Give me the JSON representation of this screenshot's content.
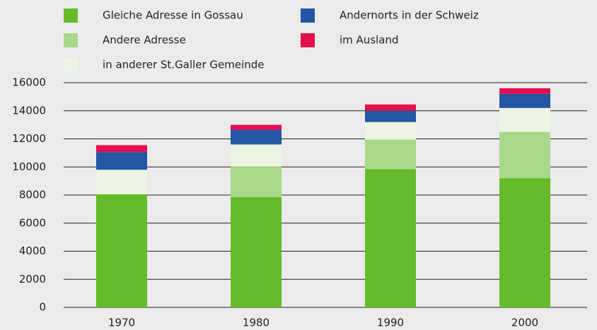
{
  "chart_data": {
    "type": "stacked_bar",
    "categories": [
      "1970",
      "1980",
      "1990",
      "2000"
    ],
    "series": [
      {
        "name": "Gleiche Adresse in Gossau",
        "color": "#66bb2a",
        "values": [
          8050,
          7850,
          9850,
          9200
        ]
      },
      {
        "name": "Andere Adresse",
        "color": "#a8d88a",
        "values": [
          0,
          2200,
          2100,
          3300
        ]
      },
      {
        "name": "in anderer St.Galler Gemeinde",
        "color": "#eef4e3",
        "values": [
          1750,
          1550,
          1250,
          1700
        ]
      },
      {
        "name": "Andernorts in der Schweiz",
        "color": "#2356a3",
        "values": [
          1250,
          1050,
          800,
          1000
        ]
      },
      {
        "name": "im Ausland",
        "color": "#e2104d",
        "values": [
          500,
          350,
          450,
          400
        ]
      }
    ],
    "ylim": [
      0,
      16000
    ],
    "yticks": [
      0,
      2000,
      4000,
      6000,
      8000,
      10000,
      12000,
      14000,
      16000
    ],
    "grid": true
  }
}
